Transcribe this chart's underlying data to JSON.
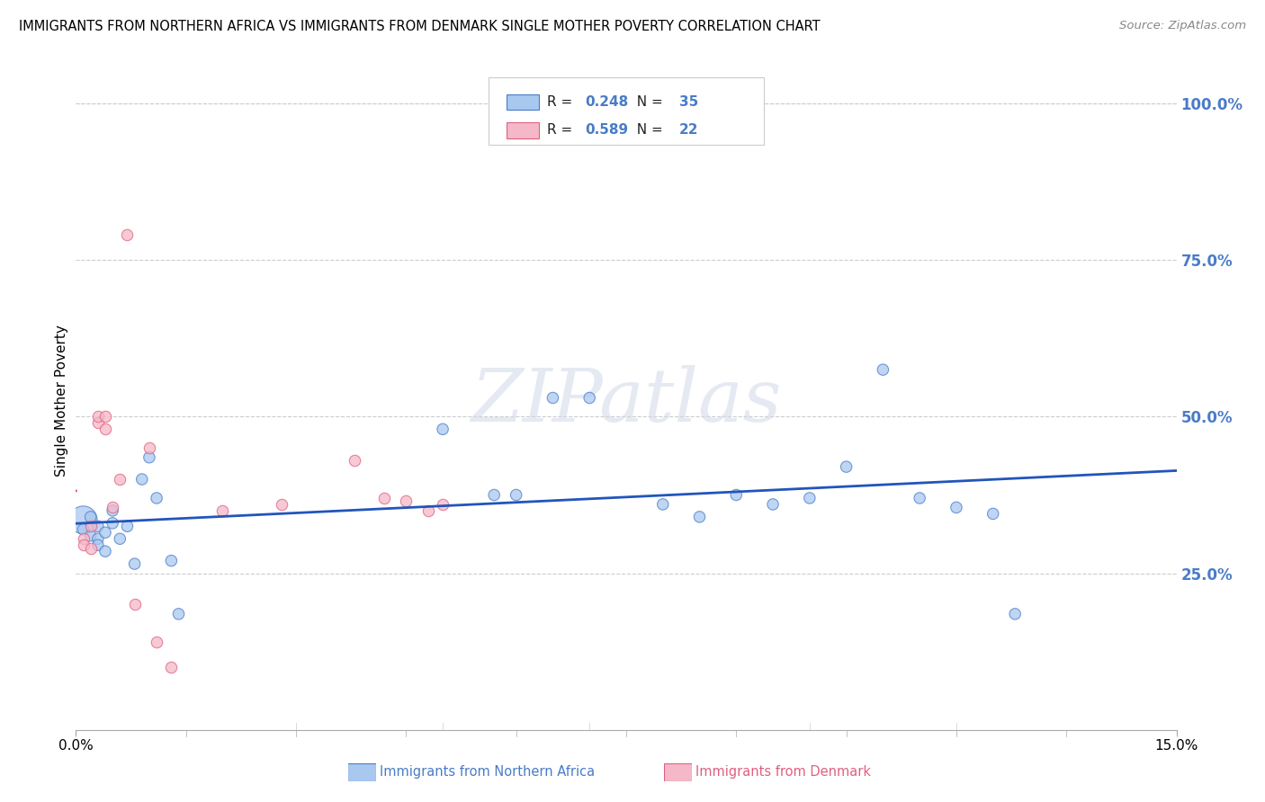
{
  "title": "IMMIGRANTS FROM NORTHERN AFRICA VS IMMIGRANTS FROM DENMARK SINGLE MOTHER POVERTY CORRELATION CHART",
  "source": "Source: ZipAtlas.com",
  "ylabel": "Single Mother Poverty",
  "ytick_labels": [
    "25.0%",
    "50.0%",
    "75.0%",
    "100.0%"
  ],
  "ytick_values": [
    0.25,
    0.5,
    0.75,
    1.0
  ],
  "xlim": [
    0,
    0.15
  ],
  "ylim": [
    0,
    1.05
  ],
  "legend_blue_label": "Immigrants from Northern Africa",
  "legend_pink_label": "Immigrants from Denmark",
  "R_blue": 0.248,
  "N_blue": 35,
  "R_pink": 0.589,
  "N_pink": 22,
  "blue_fill": "#a8c8f0",
  "pink_fill": "#f5b8c8",
  "blue_edge": "#4a7cc7",
  "pink_edge": "#e06080",
  "blue_line": "#2255bb",
  "pink_line": "#e0405a",
  "watermark": "ZIPatlas",
  "blue_x": [
    0.001,
    0.001,
    0.002,
    0.002,
    0.003,
    0.003,
    0.003,
    0.004,
    0.004,
    0.005,
    0.005,
    0.006,
    0.007,
    0.008,
    0.009,
    0.01,
    0.011,
    0.013,
    0.014,
    0.05,
    0.057,
    0.06,
    0.065,
    0.07,
    0.08,
    0.085,
    0.09,
    0.095,
    0.1,
    0.105,
    0.11,
    0.115,
    0.12,
    0.125,
    0.128
  ],
  "blue_y": [
    0.335,
    0.32,
    0.34,
    0.31,
    0.325,
    0.305,
    0.295,
    0.285,
    0.315,
    0.35,
    0.33,
    0.305,
    0.325,
    0.265,
    0.4,
    0.435,
    0.37,
    0.27,
    0.185,
    0.48,
    0.375,
    0.375,
    0.53,
    0.53,
    0.36,
    0.34,
    0.375,
    0.36,
    0.37,
    0.42,
    0.575,
    0.37,
    0.355,
    0.345,
    0.185
  ],
  "blue_sizes_large": [
    0
  ],
  "pink_x": [
    0.001,
    0.001,
    0.002,
    0.002,
    0.003,
    0.003,
    0.004,
    0.004,
    0.005,
    0.006,
    0.007,
    0.008,
    0.01,
    0.011,
    0.013,
    0.02,
    0.028,
    0.038,
    0.042,
    0.045,
    0.048,
    0.05
  ],
  "pink_y": [
    0.305,
    0.295,
    0.325,
    0.29,
    0.49,
    0.5,
    0.5,
    0.48,
    0.355,
    0.4,
    0.79,
    0.2,
    0.45,
    0.14,
    0.1,
    0.35,
    0.36,
    0.43,
    0.37,
    0.365,
    0.35,
    0.36
  ],
  "dot_size": 80,
  "large_dot_size": 500
}
